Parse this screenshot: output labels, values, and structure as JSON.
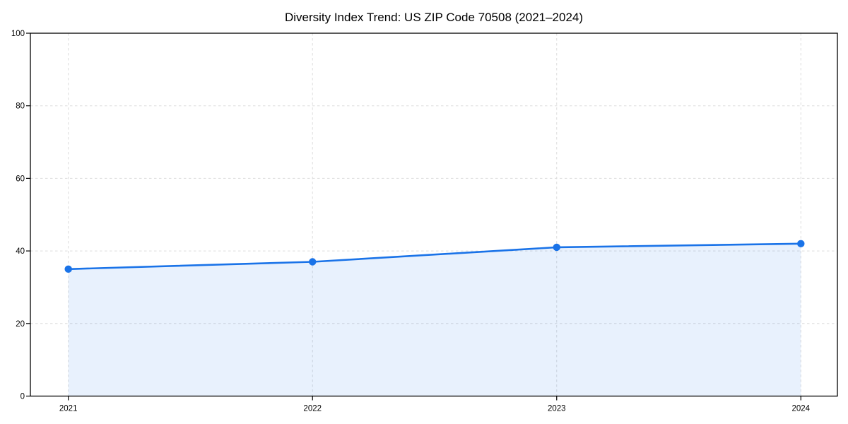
{
  "chart_data": {
    "type": "line",
    "title": "Diversity Index Trend: US ZIP Code 70508 (2021–2024)",
    "categories": [
      "2021",
      "2022",
      "2023",
      "2024"
    ],
    "x": [
      2021,
      2022,
      2023,
      2024
    ],
    "series": [
      {
        "name": "Diversity Index",
        "values": [
          35,
          37,
          41,
          42
        ]
      }
    ],
    "xlabel": "",
    "ylabel": "",
    "ylim": [
      0,
      100
    ],
    "y_ticks": [
      0,
      20,
      40,
      60,
      80,
      100
    ],
    "grid": "dashed",
    "legend_position": "none",
    "marker": "circle",
    "area_fill": true,
    "colors": {
      "line": "#1a73e8",
      "marker": "#1a73e8",
      "area_fill": "rgba(26,115,232,0.10)",
      "grid": "#dcdcdc",
      "axis": "#000000",
      "text": "#000000",
      "background": "#ffffff"
    }
  }
}
